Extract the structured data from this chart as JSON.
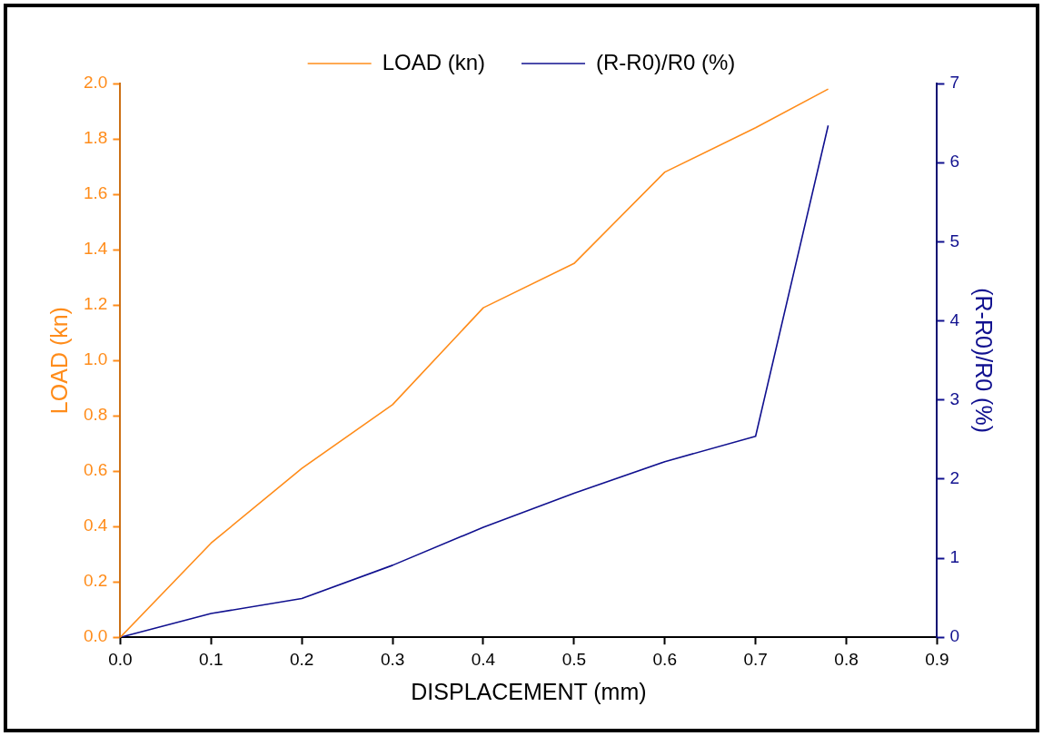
{
  "chart_data": {
    "type": "line",
    "xlabel": "DISPLACEMENT (mm)",
    "ylabel": "LOAD (kn)",
    "y2label": "(R-R0)/R0 (%)",
    "x": [
      0,
      0.1,
      0.2,
      0.3,
      0.4,
      0.5,
      0.6,
      0.7,
      0.78
    ],
    "series": [
      {
        "name": "LOAD (kn)",
        "color": "#ff8c1a",
        "values": [
          0,
          0.34,
          0.61,
          0.84,
          1.19,
          1.35,
          1.68,
          1.84,
          1.98
        ]
      },
      {
        "name": "(R-R0)/R0 (%)",
        "color": "#10108f",
        "axis": "y2",
        "values": [
          0,
          0.3,
          0.49,
          0.91,
          1.39,
          1.82,
          2.22,
          2.54,
          6.47
        ]
      }
    ],
    "xlim": [
      0,
      0.9
    ],
    "xticks": [
      {
        "value": 0,
        "label": "0.0"
      },
      0.1,
      0.2,
      0.3,
      0.4,
      0.5,
      0.6,
      0.7,
      0.8,
      0.9
    ],
    "ylim": [
      0,
      2
    ],
    "yticks": [
      {
        "value": 0,
        "label": "0.0"
      },
      0.2,
      0.4,
      0.6,
      0.8,
      {
        "value": 1,
        "label": "1.0"
      },
      1.2,
      1.4,
      1.6,
      1.8,
      {
        "value": 2,
        "label": "2.0"
      }
    ],
    "y2lim": [
      0,
      7
    ],
    "y2ticks": [
      0,
      1,
      2,
      3,
      4,
      5,
      6,
      7
    ],
    "grid": false,
    "legend": "top",
    "marker": "none",
    "line_style": "solid"
  }
}
